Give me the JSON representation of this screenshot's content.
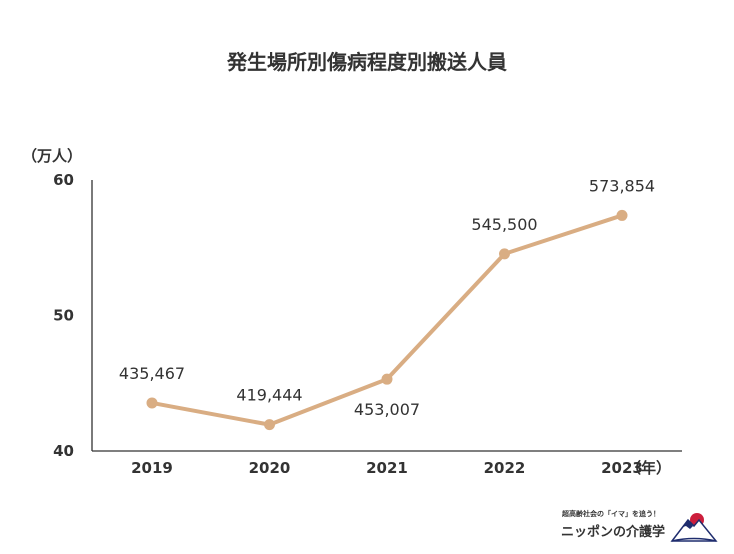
{
  "chart_data": {
    "type": "line",
    "title": "発生場所別傷病程度別搬送人員",
    "y_unit_label": "（万人）",
    "x_unit_label": "（年）",
    "categories": [
      "2019",
      "2020",
      "2021",
      "2022",
      "2023"
    ],
    "values": [
      43.5467,
      41.9444,
      45.3007,
      54.55,
      57.3854
    ],
    "data_labels": [
      "435,467",
      "419,444",
      "453,007",
      "545,500",
      "573,854"
    ],
    "data_label_positions": [
      "above",
      "above",
      "below",
      "above",
      "above"
    ],
    "y_ticks": [
      "40",
      "50",
      "60"
    ],
    "ylim": [
      40,
      60
    ],
    "grid": false,
    "line_color": "#d9ad83"
  },
  "logo": {
    "tagline": "超高齢社会の「イマ」を追う！",
    "name": "ニッポンの介護学",
    "accent_red": "#cc1e3c",
    "accent_blue": "#1f2d6e",
    "icon": "mount-fuji-sunrise-icon"
  }
}
